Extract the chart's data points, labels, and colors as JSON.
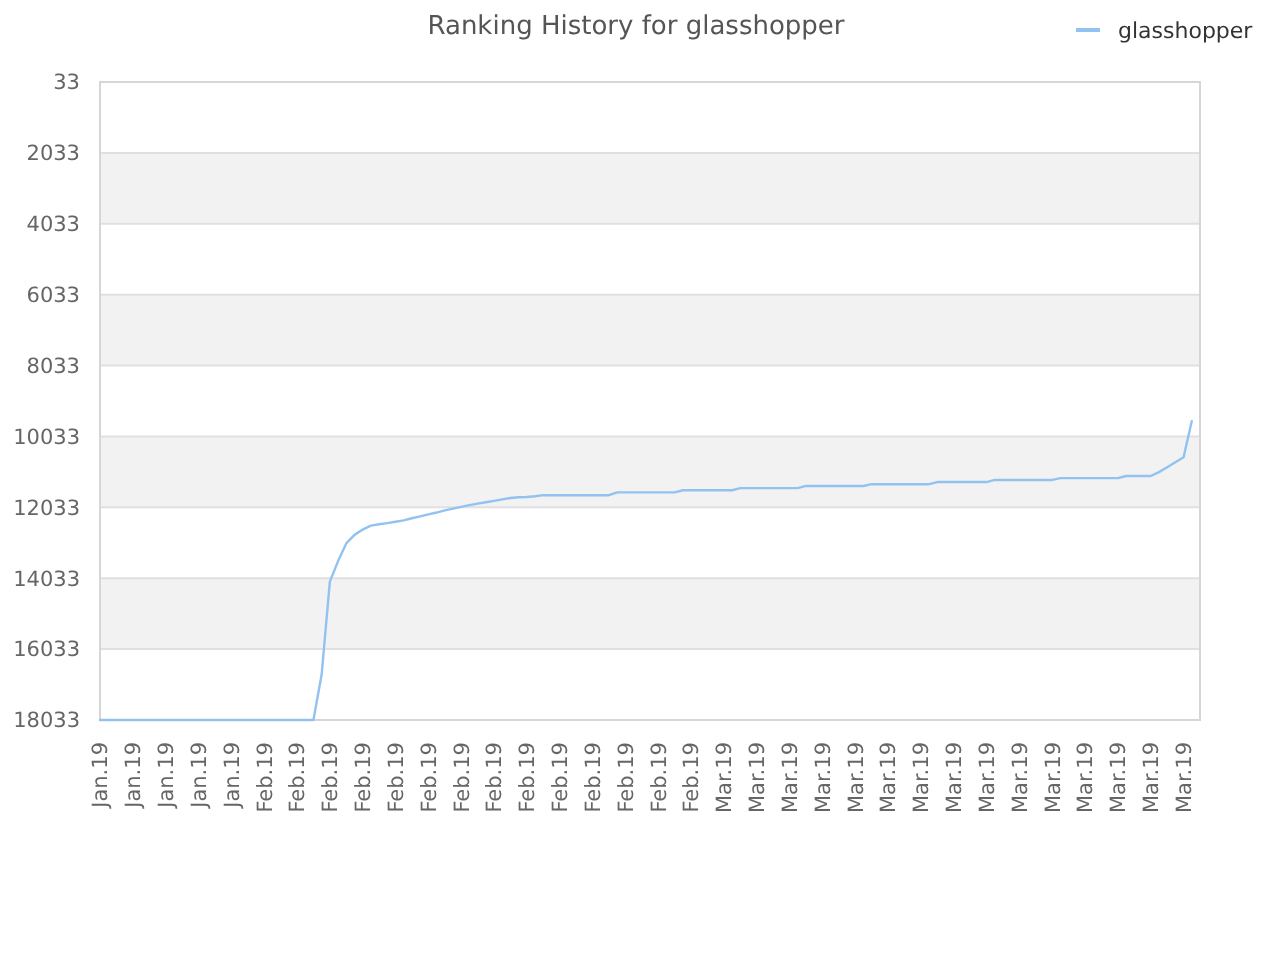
{
  "chart_data": {
    "type": "line",
    "title": "Ranking History for glasshopper",
    "categories": [
      "Jan.19",
      null,
      null,
      null,
      "Jan.19",
      null,
      null,
      null,
      "Jan.19",
      null,
      null,
      null,
      "Jan.19",
      null,
      null,
      null,
      "Jan.19",
      null,
      null,
      null,
      "Feb.19",
      null,
      null,
      null,
      "Feb.19",
      null,
      null,
      null,
      "Feb.19",
      null,
      null,
      null,
      "Feb.19",
      null,
      null,
      null,
      "Feb.19",
      null,
      null,
      null,
      "Feb.19",
      null,
      null,
      null,
      "Feb.19",
      null,
      null,
      null,
      "Feb.19",
      null,
      null,
      null,
      "Feb.19",
      null,
      null,
      null,
      "Feb.19",
      null,
      null,
      null,
      "Feb.19",
      null,
      null,
      null,
      "Feb.19",
      null,
      null,
      null,
      "Feb.19",
      null,
      null,
      null,
      "Feb.19",
      null,
      null,
      null,
      "Mar.19",
      null,
      null,
      null,
      "Mar.19",
      null,
      null,
      null,
      "Mar.19",
      null,
      null,
      null,
      "Mar.19",
      null,
      null,
      null,
      "Mar.19",
      null,
      null,
      null,
      "Mar.19",
      null,
      null,
      null,
      "Mar.19",
      null,
      null,
      null,
      "Mar.19",
      null,
      null,
      null,
      "Mar.19",
      null,
      null,
      null,
      "Mar.19",
      null,
      null,
      null,
      "Mar.19",
      null,
      null,
      null,
      "Mar.19",
      null,
      null,
      null,
      "Mar.19",
      null,
      null,
      null,
      "Mar.19",
      null,
      null,
      null,
      "Mar.19",
      null,
      null
    ],
    "series": [
      {
        "name": "glasshopper",
        "color": "#92c2ef",
        "values": [
          18033,
          18033,
          18033,
          18033,
          18033,
          18033,
          18033,
          18033,
          18033,
          18033,
          18033,
          18033,
          18033,
          18033,
          18033,
          18033,
          18033,
          18033,
          18033,
          18033,
          18033,
          18033,
          18033,
          18033,
          18033,
          18033,
          18033,
          16750,
          14130,
          13550,
          13050,
          12810,
          12660,
          12550,
          12510,
          12480,
          12440,
          12400,
          12340,
          12290,
          12230,
          12180,
          12120,
          12070,
          12020,
          11970,
          11930,
          11890,
          11850,
          11810,
          11770,
          11750,
          11740,
          11720,
          11690,
          11690,
          11690,
          11690,
          11690,
          11690,
          11690,
          11690,
          11690,
          11610,
          11610,
          11610,
          11610,
          11610,
          11610,
          11610,
          11610,
          11550,
          11550,
          11550,
          11550,
          11550,
          11550,
          11550,
          11490,
          11490,
          11490,
          11490,
          11490,
          11490,
          11490,
          11490,
          11430,
          11430,
          11430,
          11430,
          11430,
          11430,
          11430,
          11430,
          11380,
          11380,
          11380,
          11380,
          11380,
          11380,
          11380,
          11380,
          11320,
          11320,
          11320,
          11320,
          11320,
          11320,
          11320,
          11260,
          11260,
          11260,
          11260,
          11260,
          11260,
          11260,
          11260,
          11210,
          11210,
          11210,
          11210,
          11210,
          11210,
          11210,
          11210,
          11150,
          11150,
          11150,
          11150,
          11040,
          10900,
          10760,
          10620,
          9600,
          null
        ]
      }
    ],
    "ylim": [
      18033,
      33
    ],
    "yticks": [
      33,
      2033,
      4033,
      6033,
      8033,
      10033,
      12033,
      14033,
      16033,
      18033
    ],
    "grid": "y",
    "legend": "top right"
  }
}
